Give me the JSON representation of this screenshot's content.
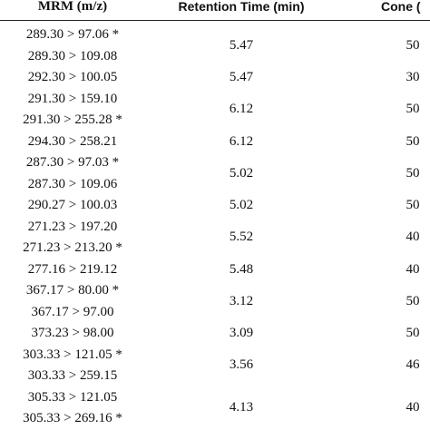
{
  "table": {
    "header": [
      "MRM (m/z)",
      "Retention Time (min)",
      "Cone ("
    ],
    "rows": [
      [
        [
          "289.30 > 97.06 *",
          "289.30 > 109.08"
        ],
        "5.47",
        "50"
      ],
      [
        [
          "292.30 > 100.05"
        ],
        "5.47",
        "30"
      ],
      [
        [
          "291.30 > 159.10",
          "291.30 > 255.28 *"
        ],
        "6.12",
        "50"
      ],
      [
        [
          "294.30 > 258.21"
        ],
        "6.12",
        "50"
      ],
      [
        [
          "287.30 > 97.03 *",
          "287.30 > 109.06"
        ],
        "5.02",
        "50"
      ],
      [
        [
          "290.27 > 100.03"
        ],
        "5.02",
        "50"
      ],
      [
        [
          "271.23 > 197.20",
          "271.23 > 213.20 *"
        ],
        "5.52",
        "40"
      ],
      [
        [
          "277.16 > 219.12"
        ],
        "5.48",
        "40"
      ],
      [
        [
          "367.17 > 80.00 *",
          "367.17 > 97.00"
        ],
        "3.12",
        "50"
      ],
      [
        [
          "373.23 > 98.00"
        ],
        "3.09",
        "50"
      ],
      [
        [
          "303.33 > 121.05 *",
          "303.33 > 259.15"
        ],
        "3.56",
        "46"
      ],
      [
        [
          "305.33 > 121.05",
          "305.33 > 269.16 *"
        ],
        "4.13",
        "40"
      ]
    ]
  }
}
